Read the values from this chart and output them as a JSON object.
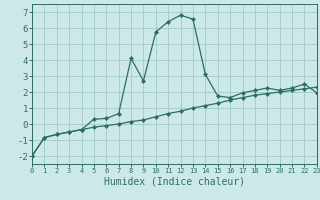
{
  "xlabel": "Humidex (Indice chaleur)",
  "bg_color": "#cde8e8",
  "grid_color": "#a0c8c8",
  "line_color": "#2e6e60",
  "x_data": [
    0,
    1,
    2,
    3,
    4,
    5,
    6,
    7,
    8,
    9,
    10,
    11,
    12,
    13,
    14,
    15,
    16,
    17,
    18,
    19,
    20,
    21,
    22,
    23
  ],
  "y1_data": [
    -2.0,
    -0.85,
    -0.65,
    -0.5,
    -0.35,
    0.3,
    0.35,
    0.65,
    4.1,
    2.7,
    5.75,
    6.4,
    6.8,
    6.55,
    3.1,
    1.75,
    1.65,
    1.95,
    2.1,
    2.25,
    2.1,
    2.25,
    2.5,
    1.95
  ],
  "y2_data": [
    -2.0,
    -0.85,
    -0.65,
    -0.5,
    -0.35,
    -0.2,
    -0.1,
    0.0,
    0.15,
    0.25,
    0.45,
    0.65,
    0.8,
    1.0,
    1.15,
    1.3,
    1.5,
    1.65,
    1.8,
    1.9,
    2.0,
    2.1,
    2.2,
    2.3
  ],
  "xlim": [
    0,
    23
  ],
  "ylim": [
    -2.5,
    7.5
  ],
  "yticks": [
    -2,
    -1,
    0,
    1,
    2,
    3,
    4,
    5,
    6,
    7
  ],
  "xticks": [
    0,
    1,
    2,
    3,
    4,
    5,
    6,
    7,
    8,
    9,
    10,
    11,
    12,
    13,
    14,
    15,
    16,
    17,
    18,
    19,
    20,
    21,
    22,
    23
  ],
  "xticklabels": [
    "0",
    "1",
    "2",
    "3",
    "4",
    "5",
    "6",
    "7",
    "8",
    "9",
    "10",
    "11",
    "12",
    "13",
    "14",
    "15",
    "16",
    "17",
    "18",
    "19",
    "20",
    "21",
    "22",
    "23"
  ]
}
